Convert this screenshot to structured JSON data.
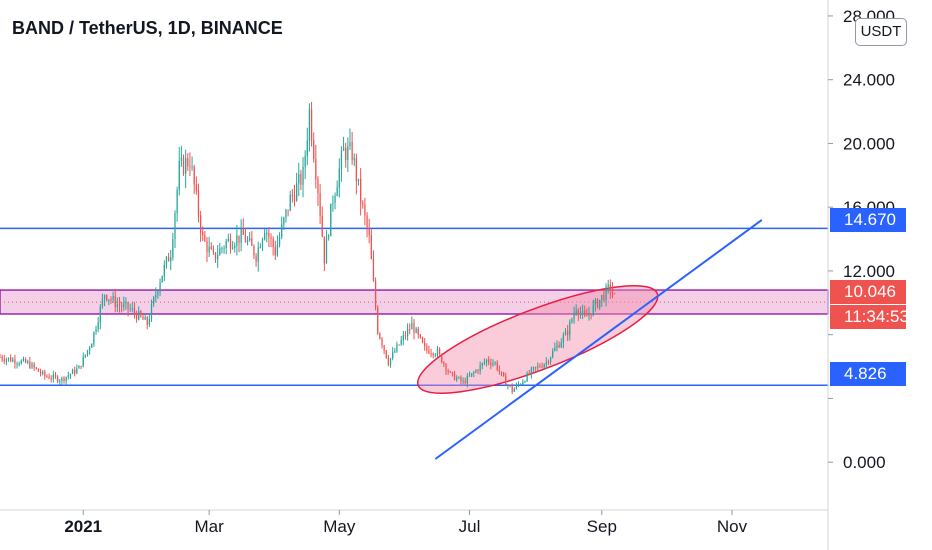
{
  "header": {
    "title": "BAND / TetherUS, 1D, BINANCE",
    "currency_button": "USDT"
  },
  "price_tags": {
    "resistance": "14.670",
    "current_price": "10.046",
    "countdown": "11:34:53",
    "support": "4.826"
  },
  "colors": {
    "up": "#26a69a",
    "down": "#ef5350",
    "horizontal_line": "#2962ff",
    "zone_fill": "#f3cfe8",
    "zone_border": "#9c27b0",
    "ellipse_fill": "rgba(245,140,170,0.45)",
    "ellipse_border": "#e91e43",
    "trendline": "#2962ff"
  },
  "chart_data": {
    "type": "candlestick",
    "title": "BAND / TetherUS, 1D, BINANCE",
    "y_axis": {
      "ticks": [
        0,
        4,
        8,
        12,
        16,
        20,
        24,
        28
      ],
      "tick_labels": [
        "0.000",
        "",
        "",
        "12.000",
        "16.000",
        "20.000",
        "24.000",
        "28.000"
      ],
      "ylim": [
        -3,
        29
      ]
    },
    "x_axis": {
      "tick_labels": [
        "2021",
        "Mar",
        "May",
        "Jul",
        "Sep",
        "Nov"
      ],
      "tick_dates": [
        "2021-01-01",
        "2021-03-01",
        "2021-05-01",
        "2021-07-01",
        "2021-09-01",
        "2021-11-01"
      ],
      "xlim": [
        "2020-11-23",
        "2021-12-16"
      ]
    },
    "price_path": [
      [
        "2020-11-23",
        6.6
      ],
      [
        "2020-12-06",
        6.2
      ],
      [
        "2020-12-14",
        5.4
      ],
      [
        "2020-12-22",
        5.2
      ],
      [
        "2020-12-30",
        5.9
      ],
      [
        "2021-01-05",
        7.6
      ],
      [
        "2021-01-11",
        10.6
      ],
      [
        "2021-01-17",
        9.9
      ],
      [
        "2021-01-23",
        9.6
      ],
      [
        "2021-01-31",
        8.7
      ],
      [
        "2021-02-06",
        11.5
      ],
      [
        "2021-02-11",
        13.2
      ],
      [
        "2021-02-15",
        18.4
      ],
      [
        "2021-02-20",
        19.0
      ],
      [
        "2021-02-26",
        14.0
      ],
      [
        "2021-03-03",
        12.8
      ],
      [
        "2021-03-09",
        13.8
      ],
      [
        "2021-03-17",
        14.2
      ],
      [
        "2021-03-23",
        13.0
      ],
      [
        "2021-03-27",
        14.8
      ],
      [
        "2021-04-01",
        13.2
      ],
      [
        "2021-04-08",
        16.5
      ],
      [
        "2021-04-14",
        18.0
      ],
      [
        "2021-04-17",
        22.0
      ],
      [
        "2021-04-21",
        17.2
      ],
      [
        "2021-04-24",
        12.8
      ],
      [
        "2021-04-28",
        16.6
      ],
      [
        "2021-05-03",
        19.5
      ],
      [
        "2021-05-07",
        19.4
      ],
      [
        "2021-05-11",
        16.5
      ],
      [
        "2021-05-15",
        14.0
      ],
      [
        "2021-05-19",
        8.3
      ],
      [
        "2021-05-24",
        6.3
      ],
      [
        "2021-05-30",
        7.6
      ],
      [
        "2021-06-04",
        8.6
      ],
      [
        "2021-06-10",
        7.1
      ],
      [
        "2021-06-16",
        6.9
      ],
      [
        "2021-06-22",
        5.5
      ],
      [
        "2021-06-28",
        5.0
      ],
      [
        "2021-07-03",
        5.6
      ],
      [
        "2021-07-09",
        6.4
      ],
      [
        "2021-07-13",
        6.2
      ],
      [
        "2021-07-17",
        5.2
      ],
      [
        "2021-07-21",
        4.5
      ],
      [
        "2021-07-25",
        5.0
      ],
      [
        "2021-07-31",
        5.8
      ],
      [
        "2021-08-06",
        6.3
      ],
      [
        "2021-08-10",
        7.1
      ],
      [
        "2021-08-16",
        8.2
      ],
      [
        "2021-08-20",
        9.8
      ],
      [
        "2021-08-24",
        9.0
      ],
      [
        "2021-08-28",
        9.7
      ],
      [
        "2021-09-02",
        10.5
      ],
      [
        "2021-09-05",
        11.0
      ],
      [
        "2021-09-07",
        10.3
      ]
    ],
    "horizontal_lines": [
      14.67,
      4.826
    ],
    "horizontal_zone": [
      9.3,
      10.8
    ],
    "dotted_price_line": 10.046,
    "trendline": [
      [
        "2021-06-15",
        0.2
      ],
      [
        "2021-11-15",
        15.2
      ]
    ],
    "ellipse": {
      "center": [
        "2021-08-02",
        7.7
      ],
      "from_date": "2021-06-03",
      "to_date": "2021-10-01"
    }
  }
}
